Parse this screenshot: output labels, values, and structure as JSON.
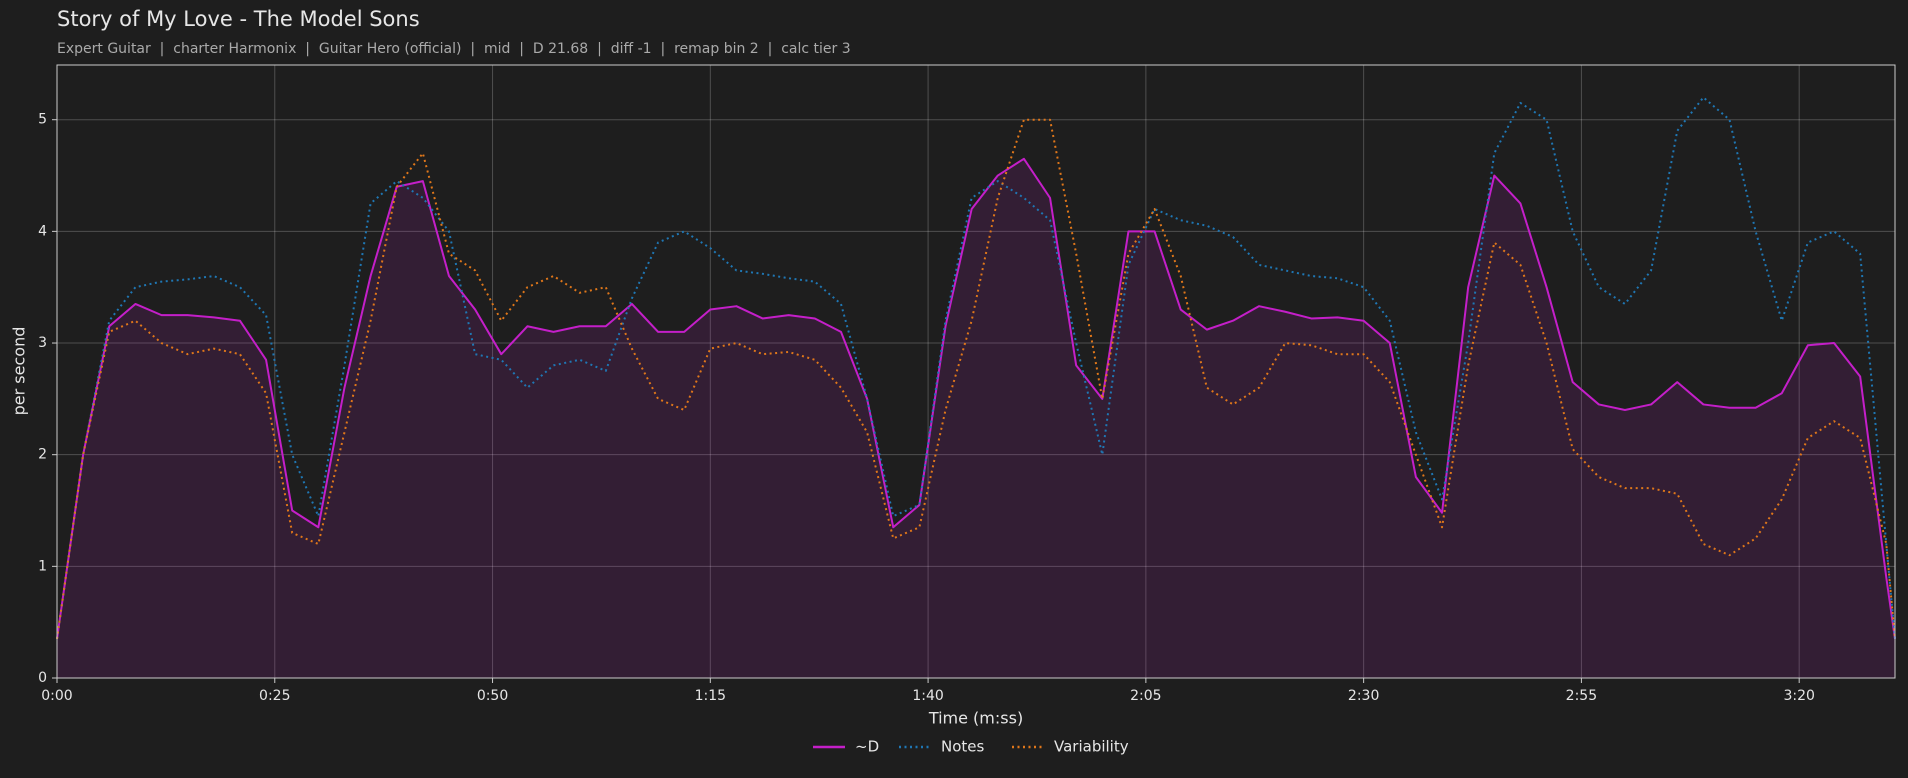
{
  "chart_data": {
    "type": "line",
    "title": "Story of My Love - The Model Sons",
    "subtitle": "Expert Guitar  |  charter Harmonix  |  Guitar Hero (official)  |  mid  |  D 21.68  |  diff -1  |  remap bin 2  |  calc tier 3",
    "x_label": "Time (m:ss)",
    "y_label": "per second",
    "x": [
      0,
      3,
      6,
      9,
      12,
      15,
      18,
      21,
      24,
      27,
      30,
      33,
      36,
      39,
      42,
      45,
      48,
      51,
      54,
      57,
      60,
      63,
      66,
      69,
      72,
      75,
      78,
      81,
      84,
      87,
      90,
      93,
      96,
      99,
      102,
      105,
      108,
      111,
      114,
      117,
      120,
      123,
      126,
      129,
      132,
      135,
      138,
      141,
      144,
      147,
      150,
      153,
      156,
      159,
      162,
      165,
      168,
      171,
      174,
      177,
      180,
      183,
      186,
      189,
      192,
      195,
      198,
      201,
      204,
      207,
      210,
      211
    ],
    "series": [
      {
        "name": "~D",
        "color": "#c41fc9",
        "style": "solid",
        "fill_under": true,
        "values": [
          0.35,
          2.0,
          3.15,
          3.35,
          3.25,
          3.25,
          3.23,
          3.2,
          2.85,
          1.5,
          1.35,
          2.6,
          3.6,
          4.4,
          4.45,
          3.6,
          3.3,
          2.9,
          3.15,
          3.1,
          3.15,
          3.15,
          3.35,
          3.1,
          3.1,
          3.3,
          3.33,
          3.22,
          3.25,
          3.22,
          3.1,
          2.5,
          1.35,
          1.55,
          3.15,
          4.2,
          4.5,
          4.65,
          4.3,
          2.8,
          2.5,
          4.0,
          4.0,
          3.3,
          3.12,
          3.2,
          3.33,
          3.28,
          3.22,
          3.23,
          3.2,
          3.0,
          1.8,
          1.48,
          3.5,
          4.5,
          4.25,
          3.5,
          2.65,
          2.45,
          2.4,
          2.45,
          2.65,
          2.45,
          2.42,
          2.42,
          2.55,
          2.98,
          3.0,
          2.7,
          0.9,
          0.35
        ]
      },
      {
        "name": "Notes",
        "color": "#1f77b4",
        "style": "dotted",
        "fill_under": false,
        "values": [
          0.35,
          2.0,
          3.2,
          3.5,
          3.55,
          3.57,
          3.6,
          3.5,
          3.25,
          2.0,
          1.45,
          2.8,
          4.25,
          4.45,
          4.3,
          4.0,
          2.9,
          2.85,
          2.6,
          2.8,
          2.85,
          2.75,
          3.4,
          3.9,
          4.0,
          3.85,
          3.65,
          3.62,
          3.58,
          3.55,
          3.35,
          2.5,
          1.45,
          1.55,
          3.2,
          4.3,
          4.45,
          4.3,
          4.1,
          3.0,
          2.0,
          3.7,
          4.2,
          4.1,
          4.05,
          3.95,
          3.7,
          3.65,
          3.6,
          3.58,
          3.5,
          3.2,
          2.2,
          1.6,
          3.0,
          4.7,
          5.15,
          5.0,
          4.0,
          3.5,
          3.35,
          3.65,
          4.9,
          5.2,
          5.0,
          4.0,
          3.2,
          3.9,
          4.0,
          3.8,
          1.2,
          0.35
        ]
      },
      {
        "name": "Variability",
        "color": "#e0771a",
        "style": "dotted",
        "fill_under": false,
        "values": [
          0.35,
          2.0,
          3.1,
          3.2,
          3.0,
          2.9,
          2.95,
          2.9,
          2.55,
          1.3,
          1.2,
          2.2,
          3.2,
          4.4,
          4.7,
          3.8,
          3.65,
          3.2,
          3.5,
          3.6,
          3.45,
          3.5,
          2.95,
          2.5,
          2.4,
          2.95,
          3.0,
          2.9,
          2.92,
          2.85,
          2.6,
          2.2,
          1.25,
          1.35,
          2.4,
          3.2,
          4.3,
          5.0,
          5.0,
          3.8,
          2.5,
          3.8,
          4.2,
          3.6,
          2.6,
          2.45,
          2.6,
          3.0,
          2.98,
          2.9,
          2.9,
          2.65,
          2.0,
          1.35,
          2.8,
          3.9,
          3.7,
          3.0,
          2.05,
          1.8,
          1.7,
          1.7,
          1.65,
          1.2,
          1.1,
          1.25,
          1.6,
          2.15,
          2.3,
          2.15,
          1.2,
          0.35
        ]
      }
    ],
    "xlim": [
      0,
      211
    ],
    "ylim": [
      0,
      5.49
    ],
    "xticks": [
      {
        "value": 0,
        "label": "0:00"
      },
      {
        "value": 25,
        "label": "0:25"
      },
      {
        "value": 50,
        "label": "0:50"
      },
      {
        "value": 75,
        "label": "1:15"
      },
      {
        "value": 100,
        "label": "1:40"
      },
      {
        "value": 125,
        "label": "2:05"
      },
      {
        "value": 150,
        "label": "2:30"
      },
      {
        "value": 175,
        "label": "2:55"
      },
      {
        "value": 200,
        "label": "3:20"
      }
    ],
    "yticks": [
      0,
      1,
      2,
      3,
      4,
      5
    ],
    "grid": true,
    "legend": "bottom"
  }
}
